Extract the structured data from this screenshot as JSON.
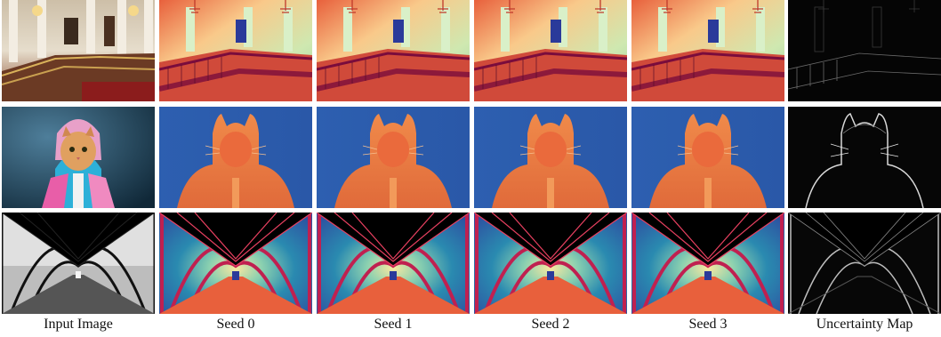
{
  "columns": [
    {
      "key": "input",
      "label": "Input Image"
    },
    {
      "key": "seed0",
      "label": "Seed 0"
    },
    {
      "key": "seed1",
      "label": "Seed 1"
    },
    {
      "key": "seed2",
      "label": "Seed 2"
    },
    {
      "key": "seed3",
      "label": "Seed 3"
    },
    {
      "key": "uncertainty",
      "label": "Uncertainty Map"
    }
  ],
  "rows": [
    {
      "key": "staircase-hall"
    },
    {
      "key": "cat-in-hoodie"
    },
    {
      "key": "steel-bridge"
    }
  ],
  "colors": {
    "depth_near": "#7a0c3c",
    "depth_mid": "#e8603c",
    "depth_far_warm": "#f7d48a",
    "depth_far_cool": "#2d5fb0",
    "uncertainty_bg": "#050505",
    "uncertainty_edge": "#d8d8d8"
  }
}
